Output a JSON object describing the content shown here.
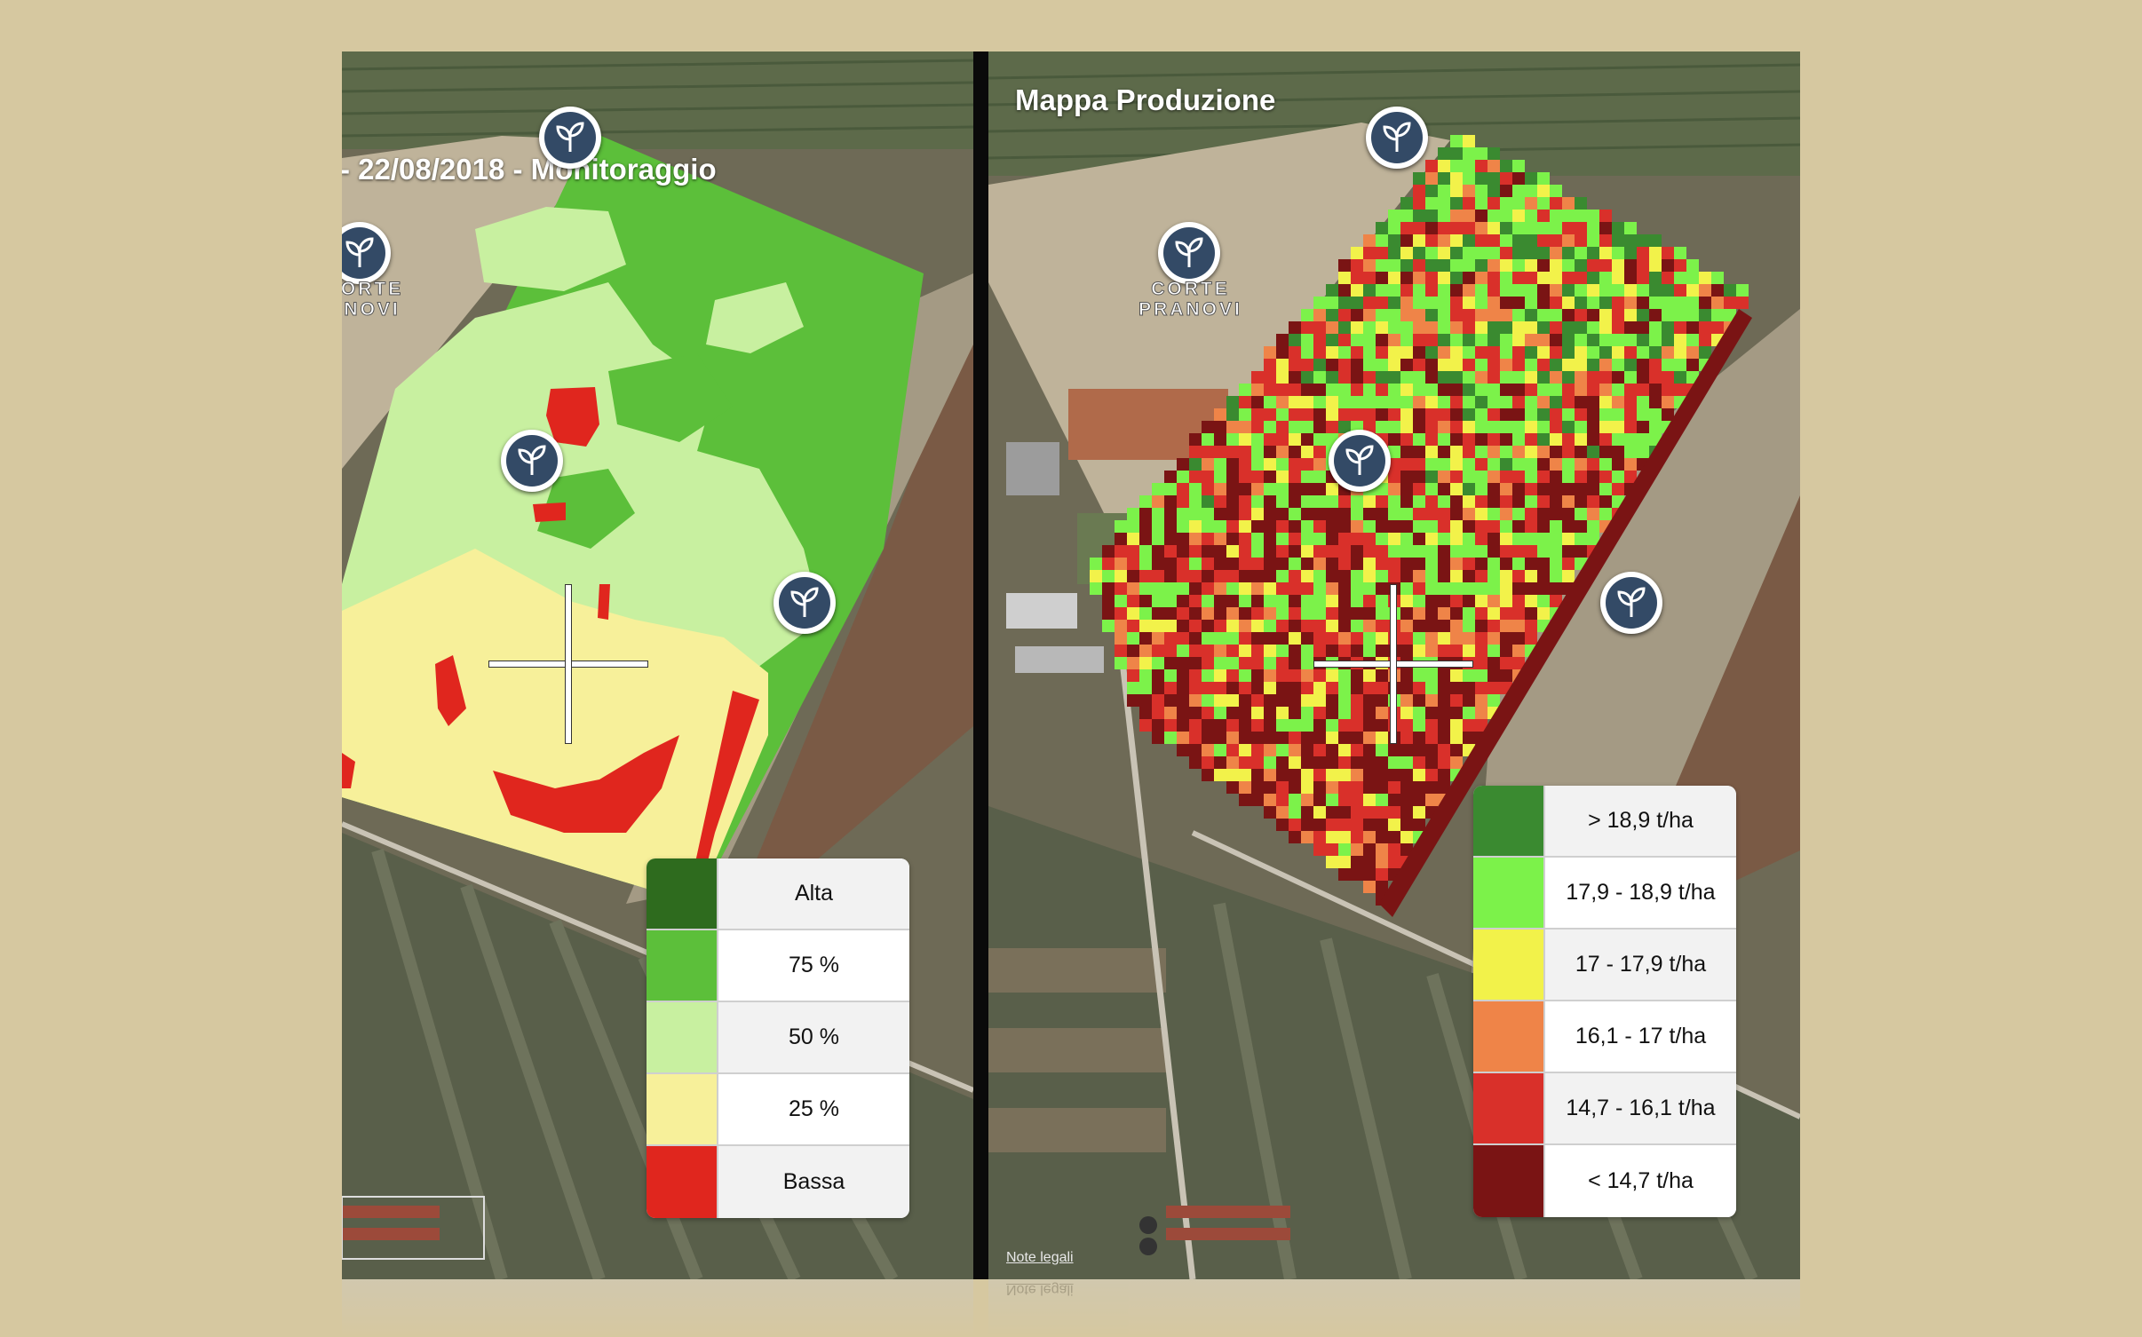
{
  "left_map": {
    "title": "- 22/08/2018 - Monitoraggio",
    "place_label_line1": "CORTE",
    "place_label_line2": "ANOVI",
    "legend": [
      {
        "label": "Alta",
        "color": "#2e6b1e"
      },
      {
        "label": "75 %",
        "color": "#5cbf3a"
      },
      {
        "label": "50 %",
        "color": "#c8f0a0"
      },
      {
        "label": "25 %",
        "color": "#f7f09a"
      },
      {
        "label": "Bassa",
        "color": "#e0261e"
      }
    ]
  },
  "right_map": {
    "title": "Mappa Produzione",
    "place_label_line1": "CORTE",
    "place_label_line2": "PRANOVI",
    "note": "Note legali",
    "legend": [
      {
        "label": "> 18,9 t/ha",
        "color": "#3a8a30"
      },
      {
        "label": "17,9 - 18,9 t/ha",
        "color": "#7cf24a"
      },
      {
        "label": "17 - 17,9 t/ha",
        "color": "#f2f24a"
      },
      {
        "label": "16,1 - 17 t/ha",
        "color": "#ef8448"
      },
      {
        "label": "14,7 - 16,1 t/ha",
        "color": "#d9302a"
      },
      {
        "label": "< 14,7 t/ha",
        "color": "#7a1414"
      }
    ]
  },
  "icons": {
    "pin": "plant-sprout-icon",
    "crosshair": "crosshair-icon"
  }
}
